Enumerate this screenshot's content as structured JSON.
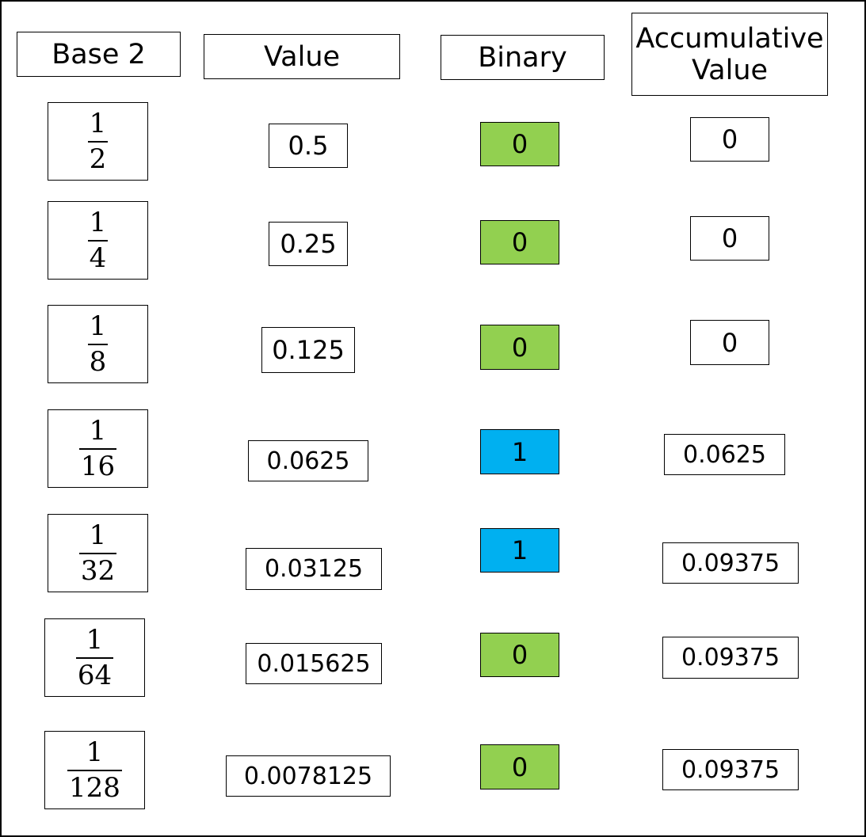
{
  "headers": {
    "base2": "Base 2",
    "value": "Value",
    "binary": "Binary",
    "accumulative_line1": "Accumulative",
    "accumulative_line2": "Value"
  },
  "rows": [
    {
      "numerator": "1",
      "denominator": "2",
      "value": "0.5",
      "binary": "0",
      "accumulative": "0"
    },
    {
      "numerator": "1",
      "denominator": "4",
      "value": "0.25",
      "binary": "0",
      "accumulative": "0"
    },
    {
      "numerator": "1",
      "denominator": "8",
      "value": "0.125",
      "binary": "0",
      "accumulative": "0"
    },
    {
      "numerator": "1",
      "denominator": "16",
      "value": "0.0625",
      "binary": "1",
      "accumulative": "0.0625"
    },
    {
      "numerator": "1",
      "denominator": "32",
      "value": "0.03125",
      "binary": "1",
      "accumulative": "0.09375"
    },
    {
      "numerator": "1",
      "denominator": "64",
      "value": "0.015625",
      "binary": "0",
      "accumulative": "0.09375"
    },
    {
      "numerator": "1",
      "denominator": "128",
      "value": "0.0078125",
      "binary": "0",
      "accumulative": "0.09375"
    }
  ],
  "colors": {
    "binary_zero": "#92d050",
    "binary_one": "#00b0f0"
  }
}
